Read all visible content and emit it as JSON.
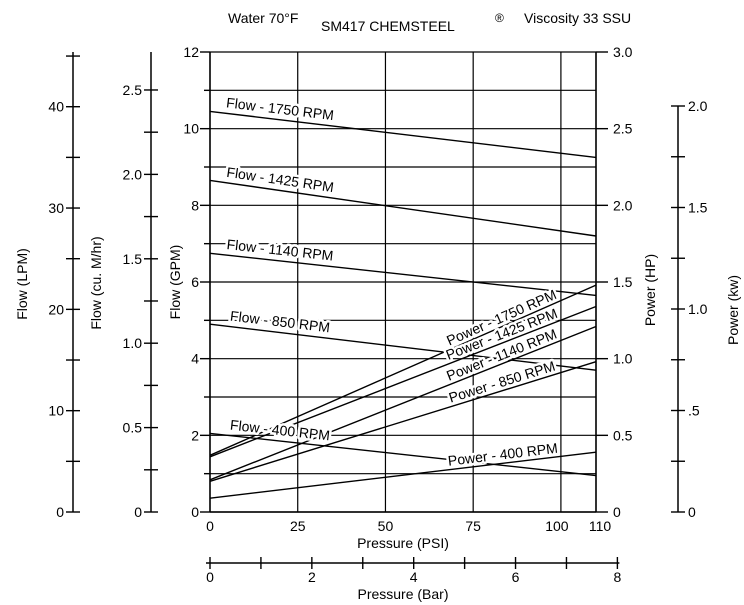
{
  "title": {
    "left": "Water 70°F",
    "center": "SM417 CHEMSTEEL",
    "registered": "®",
    "right": "Viscosity 33 SSU"
  },
  "chart_data": {
    "type": "line",
    "x_axis": {
      "label": "Pressure (PSI)",
      "range": [
        0,
        110
      ],
      "ticks": [
        0,
        25,
        50,
        75,
        100,
        110
      ],
      "tick_labels": [
        "0",
        "25",
        "50",
        "75",
        "100",
        "110"
      ],
      "grid": true
    },
    "x2_axis": {
      "label": "Pressure (Bar)",
      "range": [
        0,
        7.58
      ],
      "ticks": [
        0,
        1,
        2,
        3,
        4,
        5,
        6,
        7,
        8
      ],
      "tick_labels": [
        "0",
        "",
        "2",
        "",
        "4",
        "",
        "6",
        "",
        "8"
      ]
    },
    "y_axes_left": [
      {
        "label": "Flow (LPM)",
        "range": [
          0,
          45.4
        ],
        "ticks": [
          0,
          5,
          10,
          15,
          20,
          25,
          30,
          35,
          40,
          45
        ],
        "tick_labels": [
          "0",
          "",
          "10",
          "",
          "20",
          "",
          "30",
          "",
          "40",
          ""
        ]
      },
      {
        "label": "Flow (cu. M/hr)",
        "range": [
          0,
          2.725
        ],
        "ticks": [
          0,
          0.25,
          0.5,
          0.75,
          1.0,
          1.25,
          1.5,
          1.75,
          2.0,
          2.25,
          2.5
        ],
        "tick_labels": [
          "0",
          "",
          "0.5",
          "",
          "1.0",
          "",
          "1.5",
          "",
          "2.0",
          "",
          "2.5"
        ]
      },
      {
        "label": "Flow (GPM)",
        "range": [
          0,
          12
        ],
        "ticks": [
          0,
          2,
          4,
          6,
          8,
          10,
          12
        ],
        "tick_labels": [
          "0",
          "2",
          "4",
          "6",
          "8",
          "10",
          "12"
        ],
        "grid": true
      }
    ],
    "y_axes_right": [
      {
        "label": "Power (HP)",
        "range": [
          0,
          3.0
        ],
        "ticks": [
          0,
          0.5,
          1.0,
          1.5,
          2.0,
          2.5,
          3.0
        ],
        "tick_labels": [
          "0",
          "0.5",
          "1.0",
          "1.5",
          "2.0",
          "2.5",
          "3.0"
        ],
        "grid": true
      },
      {
        "label": "Power (kw)",
        "range": [
          0,
          2.0
        ],
        "ticks": [
          0,
          0.25,
          0.5,
          0.75,
          1.0,
          1.25,
          1.5,
          1.75,
          2.0
        ],
        "tick_labels": [
          "0",
          "",
          ".5",
          "",
          "1.0",
          "",
          "1.5",
          "",
          "2.0"
        ]
      }
    ],
    "flow_series": [
      {
        "name": "Flow - 1750 RPM",
        "x": [
          0,
          110
        ],
        "y": [
          10.45,
          9.25
        ]
      },
      {
        "name": "Flow - 1425 RPM",
        "x": [
          0,
          110
        ],
        "y": [
          8.65,
          7.2
        ]
      },
      {
        "name": "Flow - 1140 RPM",
        "x": [
          0,
          110
        ],
        "y": [
          6.75,
          5.65
        ]
      },
      {
        "name": "Flow - 850 RPM",
        "x": [
          0,
          110
        ],
        "y": [
          4.9,
          3.7
        ]
      },
      {
        "name": "Flow - 400 RPM",
        "x": [
          0,
          110
        ],
        "y": [
          2.05,
          0.95
        ]
      }
    ],
    "power_series": [
      {
        "name": "Power - 1750 RPM",
        "x": [
          0,
          110
        ],
        "y": [
          0.37,
          1.48
        ]
      },
      {
        "name": "Power - 1425 RPM",
        "x": [
          0,
          110
        ],
        "y": [
          0.36,
          1.34
        ]
      },
      {
        "name": "Power - 1140 RPM",
        "x": [
          0,
          110
        ],
        "y": [
          0.21,
          1.21
        ]
      },
      {
        "name": "Power - 850 RPM",
        "x": [
          0,
          110
        ],
        "y": [
          0.2,
          0.98
        ]
      },
      {
        "name": "Power - 400 RPM",
        "x": [
          0,
          110
        ],
        "y": [
          0.09,
          0.39
        ]
      }
    ]
  }
}
